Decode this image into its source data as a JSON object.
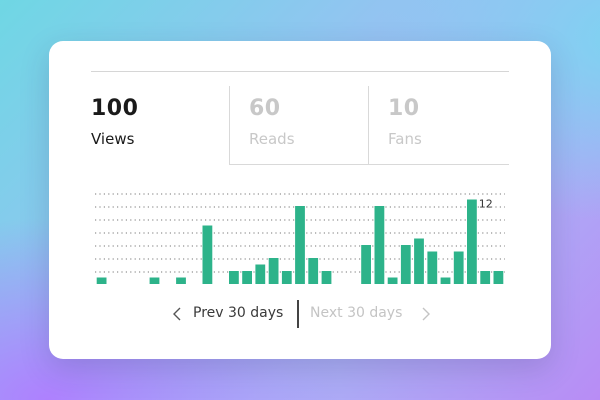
{
  "stats": [
    {
      "value": "100",
      "label": "Views",
      "active": true
    },
    {
      "value": "60",
      "label": "Reads",
      "active": false
    },
    {
      "value": "10",
      "label": "Fans",
      "active": false
    }
  ],
  "chart_data": {
    "type": "bar",
    "values": [
      1,
      0,
      0,
      0,
      1,
      0,
      1,
      0,
      9,
      0,
      2,
      2,
      3,
      4,
      2,
      12,
      4,
      2,
      0,
      0,
      6,
      12,
      1,
      6,
      7,
      5,
      1,
      5,
      13,
      2,
      2
    ],
    "ylim": [
      0,
      14
    ],
    "gridlines": 7,
    "annotation": {
      "text": "12"
    },
    "bar_color": "#2db38a",
    "grid_color": "#777777"
  },
  "pager": {
    "prev_label": "Prev 30 days",
    "next_label": "Next 30 days"
  },
  "colors": {
    "accent": "#2db38a",
    "active_text": "#1a1a1a",
    "inactive_text": "#c8c8c8"
  }
}
